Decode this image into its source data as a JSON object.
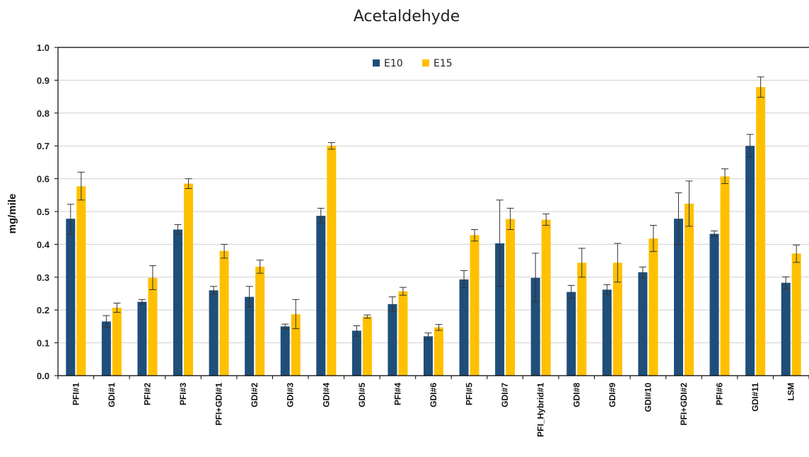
{
  "chart_data": {
    "type": "bar",
    "title": "Acetaldehyde",
    "ylabel": "mg/mile",
    "xlabel": "",
    "ylim": [
      0,
      1.0
    ],
    "yticks": [
      "0.0",
      "0.1",
      "0.2",
      "0.3",
      "0.4",
      "0.5",
      "0.6",
      "0.7",
      "0.8",
      "0.9",
      "1.0"
    ],
    "grid": true,
    "legend_position": "top-center",
    "categories": [
      "PFI#1",
      "GDI#1",
      "PFI#2",
      "PFI#3",
      "PFI+GDI#1",
      "GDI#2",
      "GDI#3",
      "GDI#4",
      "GDI#5",
      "PFI#4",
      "GDI#6",
      "PFI#5",
      "GDI#7",
      "PFI_Hybrid#1",
      "GDI#8",
      "GDI#9",
      "GDI#10",
      "PFI+GDI#2",
      "PFI#6",
      "GDI#11",
      "LSM"
    ],
    "series": [
      {
        "name": "E10",
        "color": "#1F4E79",
        "values": [
          0.478,
          0.165,
          0.225,
          0.445,
          0.26,
          0.24,
          0.15,
          0.487,
          0.137,
          0.218,
          0.12,
          0.293,
          0.403,
          0.298,
          0.255,
          0.262,
          0.315,
          0.478,
          0.432,
          0.7,
          0.283
        ],
        "error_low": [
          0.432,
          0.148,
          0.218,
          0.43,
          0.248,
          0.21,
          0.143,
          0.465,
          0.12,
          0.196,
          0.11,
          0.268,
          0.272,
          0.225,
          0.235,
          0.248,
          0.298,
          0.4,
          0.424,
          0.667,
          0.265
        ],
        "error_high": [
          0.522,
          0.183,
          0.232,
          0.46,
          0.272,
          0.272,
          0.157,
          0.51,
          0.152,
          0.24,
          0.13,
          0.32,
          0.535,
          0.373,
          0.275,
          0.277,
          0.331,
          0.557,
          0.441,
          0.735,
          0.301
        ]
      },
      {
        "name": "E15",
        "color": "#FFC000",
        "values": [
          0.577,
          0.207,
          0.298,
          0.585,
          0.38,
          0.332,
          0.187,
          0.7,
          0.18,
          0.257,
          0.147,
          0.428,
          0.477,
          0.475,
          0.344,
          0.344,
          0.418,
          0.524,
          0.607,
          0.879,
          0.372
        ],
        "error_low": [
          0.535,
          0.193,
          0.262,
          0.57,
          0.358,
          0.312,
          0.143,
          0.69,
          0.175,
          0.245,
          0.138,
          0.41,
          0.445,
          0.458,
          0.3,
          0.285,
          0.378,
          0.455,
          0.585,
          0.848,
          0.345
        ],
        "error_high": [
          0.62,
          0.221,
          0.335,
          0.6,
          0.4,
          0.352,
          0.232,
          0.71,
          0.185,
          0.269,
          0.156,
          0.445,
          0.51,
          0.493,
          0.388,
          0.403,
          0.458,
          0.593,
          0.63,
          0.91,
          0.398
        ]
      }
    ]
  }
}
